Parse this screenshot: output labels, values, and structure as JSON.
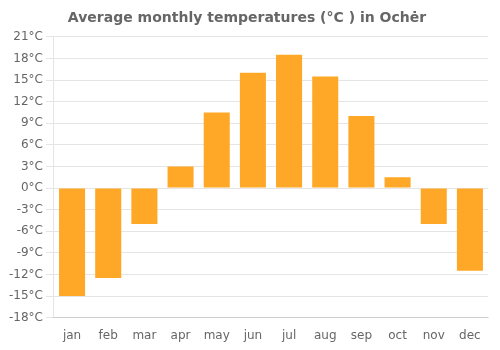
{
  "chart_data": {
    "type": "bar",
    "title": "Average monthly temperatures (°C ) in Ochėr",
    "categories": [
      "jan",
      "feb",
      "mar",
      "apr",
      "may",
      "jun",
      "jul",
      "aug",
      "sep",
      "oct",
      "nov",
      "dec"
    ],
    "values": [
      -15,
      -12.5,
      -5,
      3,
      10.5,
      16,
      18.5,
      15.5,
      10,
      1.5,
      -5,
      -11.5
    ],
    "color": "#FFA726",
    "ylim": [
      -18,
      21
    ],
    "yticks": [
      {
        "value": -18,
        "label": "-18°C"
      },
      {
        "value": -15,
        "label": "-15°C"
      },
      {
        "value": -12,
        "label": "-12°C"
      },
      {
        "value": -9,
        "label": "-9°C"
      },
      {
        "value": -6,
        "label": "-6°C"
      },
      {
        "value": -3,
        "label": "-3°C"
      },
      {
        "value": 0,
        "label": "0°C"
      },
      {
        "value": 3,
        "label": "3°C"
      },
      {
        "value": 6,
        "label": "6°C"
      },
      {
        "value": 9,
        "label": "9°C"
      },
      {
        "value": 12,
        "label": "12°C"
      },
      {
        "value": 15,
        "label": "15°C"
      },
      {
        "value": 18,
        "label": "18°C"
      },
      {
        "value": 21,
        "label": "21°C"
      }
    ],
    "grid": true
  }
}
